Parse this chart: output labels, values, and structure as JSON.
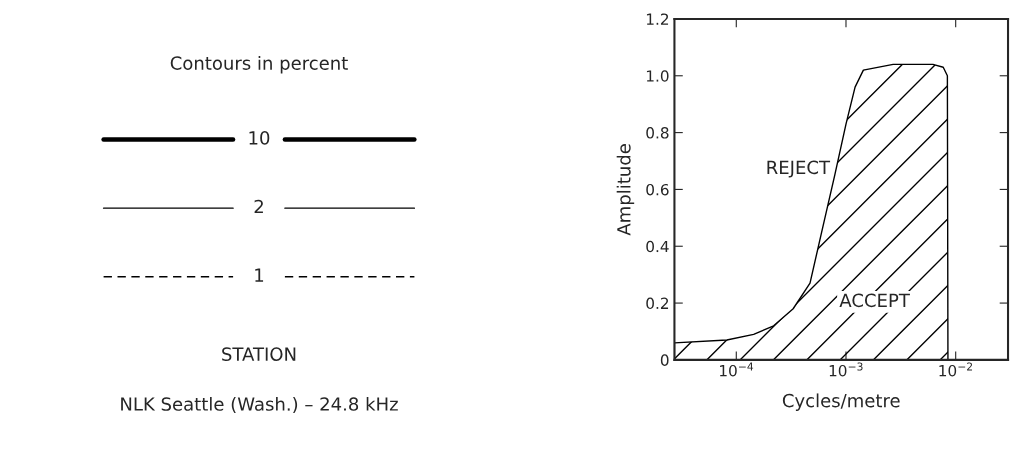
{
  "chart_data": [
    {
      "type": "other",
      "title": "Contours in percent",
      "series": [
        {
          "name": "10",
          "color": "#000000",
          "line_style": "solid"
        },
        {
          "name": "2",
          "color": "#000000",
          "line_style": "solid"
        },
        {
          "name": "1",
          "color": "#000000",
          "line_style": "dashed"
        }
      ],
      "annotations": [
        "STATION",
        "NLK Seattle (Wash.) – 24.8 kHz"
      ]
    },
    {
      "type": "area",
      "xlabel": "Cycles/metre",
      "ylabel": "Amplitude",
      "log": "x",
      "x": [
        2.73e-05,
        8.2e-05,
        0.000144,
        0.000219,
        0.00033,
        0.00047,
        0.0006,
        0.00079,
        0.001,
        0.00121,
        0.00144,
        0.00269,
        0.0062,
        0.0077,
        0.0084,
        0.0085
      ],
      "series": [
        {
          "color": "#000000",
          "values": [
            0.06,
            0.07,
            0.09,
            0.12,
            0.18,
            0.27,
            0.45,
            0.65,
            0.83,
            0.96,
            1.02,
            1.04,
            1.04,
            1.03,
            1.0,
            0
          ]
        }
      ],
      "xlim": [
        2.73e-05,
        0.03
      ],
      "ylim": [
        0,
        1.2
      ],
      "xticks": [
        {
          "value": 0.0001,
          "label": "10$^{−4}$"
        },
        {
          "value": 0.001,
          "label": "10$^{−3}$"
        },
        {
          "value": 0.01,
          "label": "10$^{−2}$"
        }
      ],
      "yticks": [
        0,
        0.2,
        0.4,
        0.6,
        0.8,
        {
          "value": 1,
          "label": "1.0"
        },
        1.2
      ],
      "grid": false,
      "legend": false,
      "annotations": [
        "REJECT",
        "ACCEPT"
      ]
    }
  ]
}
